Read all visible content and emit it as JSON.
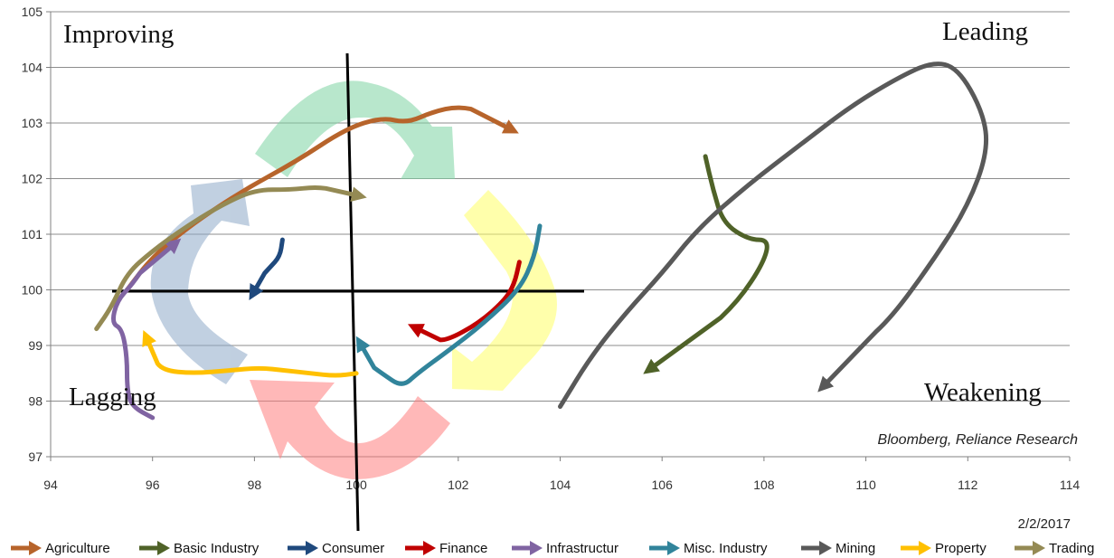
{
  "chart_data": {
    "type": "line",
    "subtype": "relative-rotation-graph",
    "xlim": [
      94,
      114
    ],
    "ylim": [
      97,
      105
    ],
    "x_ticks": [
      "94",
      "96",
      "98",
      "100",
      "102",
      "104",
      "106",
      "108",
      "110",
      "112",
      "114"
    ],
    "y_ticks": [
      "97",
      "98",
      "99",
      "100",
      "101",
      "102",
      "103",
      "104",
      "105"
    ],
    "grid": "horizontal",
    "legend_position": "bottom",
    "quadrants": {
      "improving": "Improving",
      "leading": "Leading",
      "lagging": "Lagging",
      "weakening": "Weakening"
    },
    "source": "Bloomberg, Reliance Research",
    "date": "2/2/2017",
    "series": [
      {
        "name": "Agriculture",
        "color": "#b7642b",
        "points": [
          [
            95.5,
            100
          ],
          [
            96,
            100.6
          ],
          [
            96.8,
            101.2
          ],
          [
            97.8,
            101.8
          ],
          [
            98.8,
            102.3
          ],
          [
            99.8,
            102.9
          ],
          [
            100.5,
            103.1
          ],
          [
            101,
            103
          ],
          [
            101.5,
            103.2
          ],
          [
            102,
            103.3
          ],
          [
            102.5,
            103.2
          ],
          [
            103,
            102.9
          ]
        ]
      },
      {
        "name": "Basic Industry",
        "color": "#4f6228",
        "points": [
          [
            106.85,
            102.4
          ],
          [
            107,
            101.8
          ],
          [
            107.2,
            101.2
          ],
          [
            107.7,
            100.9
          ],
          [
            108.1,
            100.9
          ],
          [
            108,
            100.5
          ],
          [
            107.5,
            99.8
          ],
          [
            106.8,
            99.2
          ],
          [
            105.8,
            98.6
          ]
        ]
      },
      {
        "name": "Consumer",
        "color": "#1f497d",
        "points": [
          [
            98.55,
            100.9
          ],
          [
            98.5,
            100.6
          ],
          [
            98.3,
            100.4
          ],
          [
            98.1,
            100.2
          ],
          [
            98,
            99.98
          ]
        ]
      },
      {
        "name": "Finance",
        "color": "#c00000",
        "points": [
          [
            103.2,
            100.5
          ],
          [
            103.1,
            100.1
          ],
          [
            102.9,
            99.8
          ],
          [
            102.4,
            99.4
          ],
          [
            101.8,
            99.1
          ],
          [
            101.5,
            99.1
          ],
          [
            101.2,
            99.3
          ]
        ]
      },
      {
        "name": "Infrastructur",
        "color": "#8064a2",
        "points": [
          [
            96,
            97.7
          ],
          [
            95.6,
            97.9
          ],
          [
            95.5,
            98.2
          ],
          [
            95.5,
            98.8
          ],
          [
            95.4,
            99.3
          ],
          [
            95.2,
            99.4
          ],
          [
            95.3,
            99.8
          ],
          [
            95.6,
            100.1
          ],
          [
            95.9,
            100.5
          ],
          [
            96.4,
            100.8
          ]
        ]
      },
      {
        "name": "Misc. Industry",
        "color": "#31849b",
        "points": [
          [
            103.6,
            101.15
          ],
          [
            103.5,
            100.6
          ],
          [
            103.2,
            100
          ],
          [
            102.5,
            99.4
          ],
          [
            101.8,
            98.9
          ],
          [
            101.2,
            98.5
          ],
          [
            100.9,
            98.25
          ],
          [
            100.5,
            98.5
          ],
          [
            100.2,
            98.7
          ],
          [
            100.1,
            99
          ]
        ]
      },
      {
        "name": "Mining",
        "color": "#595959",
        "points": [
          [
            104,
            97.9
          ],
          [
            104.6,
            98.8
          ],
          [
            105.3,
            99.6
          ],
          [
            106,
            100.3
          ],
          [
            106.7,
            101.1
          ],
          [
            107.7,
            101.9
          ],
          [
            108.7,
            102.6
          ],
          [
            109.7,
            103.3
          ],
          [
            110.6,
            103.8
          ],
          [
            111.3,
            104.1
          ],
          [
            111.8,
            104
          ],
          [
            112.3,
            103.2
          ],
          [
            112.4,
            102.5
          ],
          [
            112,
            101.5
          ],
          [
            111.3,
            100.5
          ],
          [
            110.5,
            99.5
          ],
          [
            109.9,
            99
          ],
          [
            109.2,
            98.3
          ]
        ]
      },
      {
        "name": "Property",
        "color": "#ffc000",
        "points": [
          [
            100,
            98.5
          ],
          [
            99.6,
            98.45
          ],
          [
            99.1,
            98.5
          ],
          [
            98.6,
            98.55
          ],
          [
            98.1,
            98.6
          ],
          [
            97.5,
            98.55
          ],
          [
            96.8,
            98.5
          ],
          [
            96.2,
            98.55
          ],
          [
            96,
            98.8
          ],
          [
            95.9,
            99.1
          ]
        ]
      },
      {
        "name": "Trading",
        "color": "#948a54",
        "points": [
          [
            94.9,
            99.3
          ],
          [
            95.2,
            99.7
          ],
          [
            95.5,
            100.3
          ],
          [
            96,
            100.7
          ],
          [
            96.6,
            101.1
          ],
          [
            97.3,
            101.5
          ],
          [
            98,
            101.8
          ],
          [
            98.7,
            101.8
          ],
          [
            99.2,
            101.85
          ],
          [
            99.6,
            101.8
          ],
          [
            100,
            101.7
          ]
        ]
      }
    ]
  }
}
